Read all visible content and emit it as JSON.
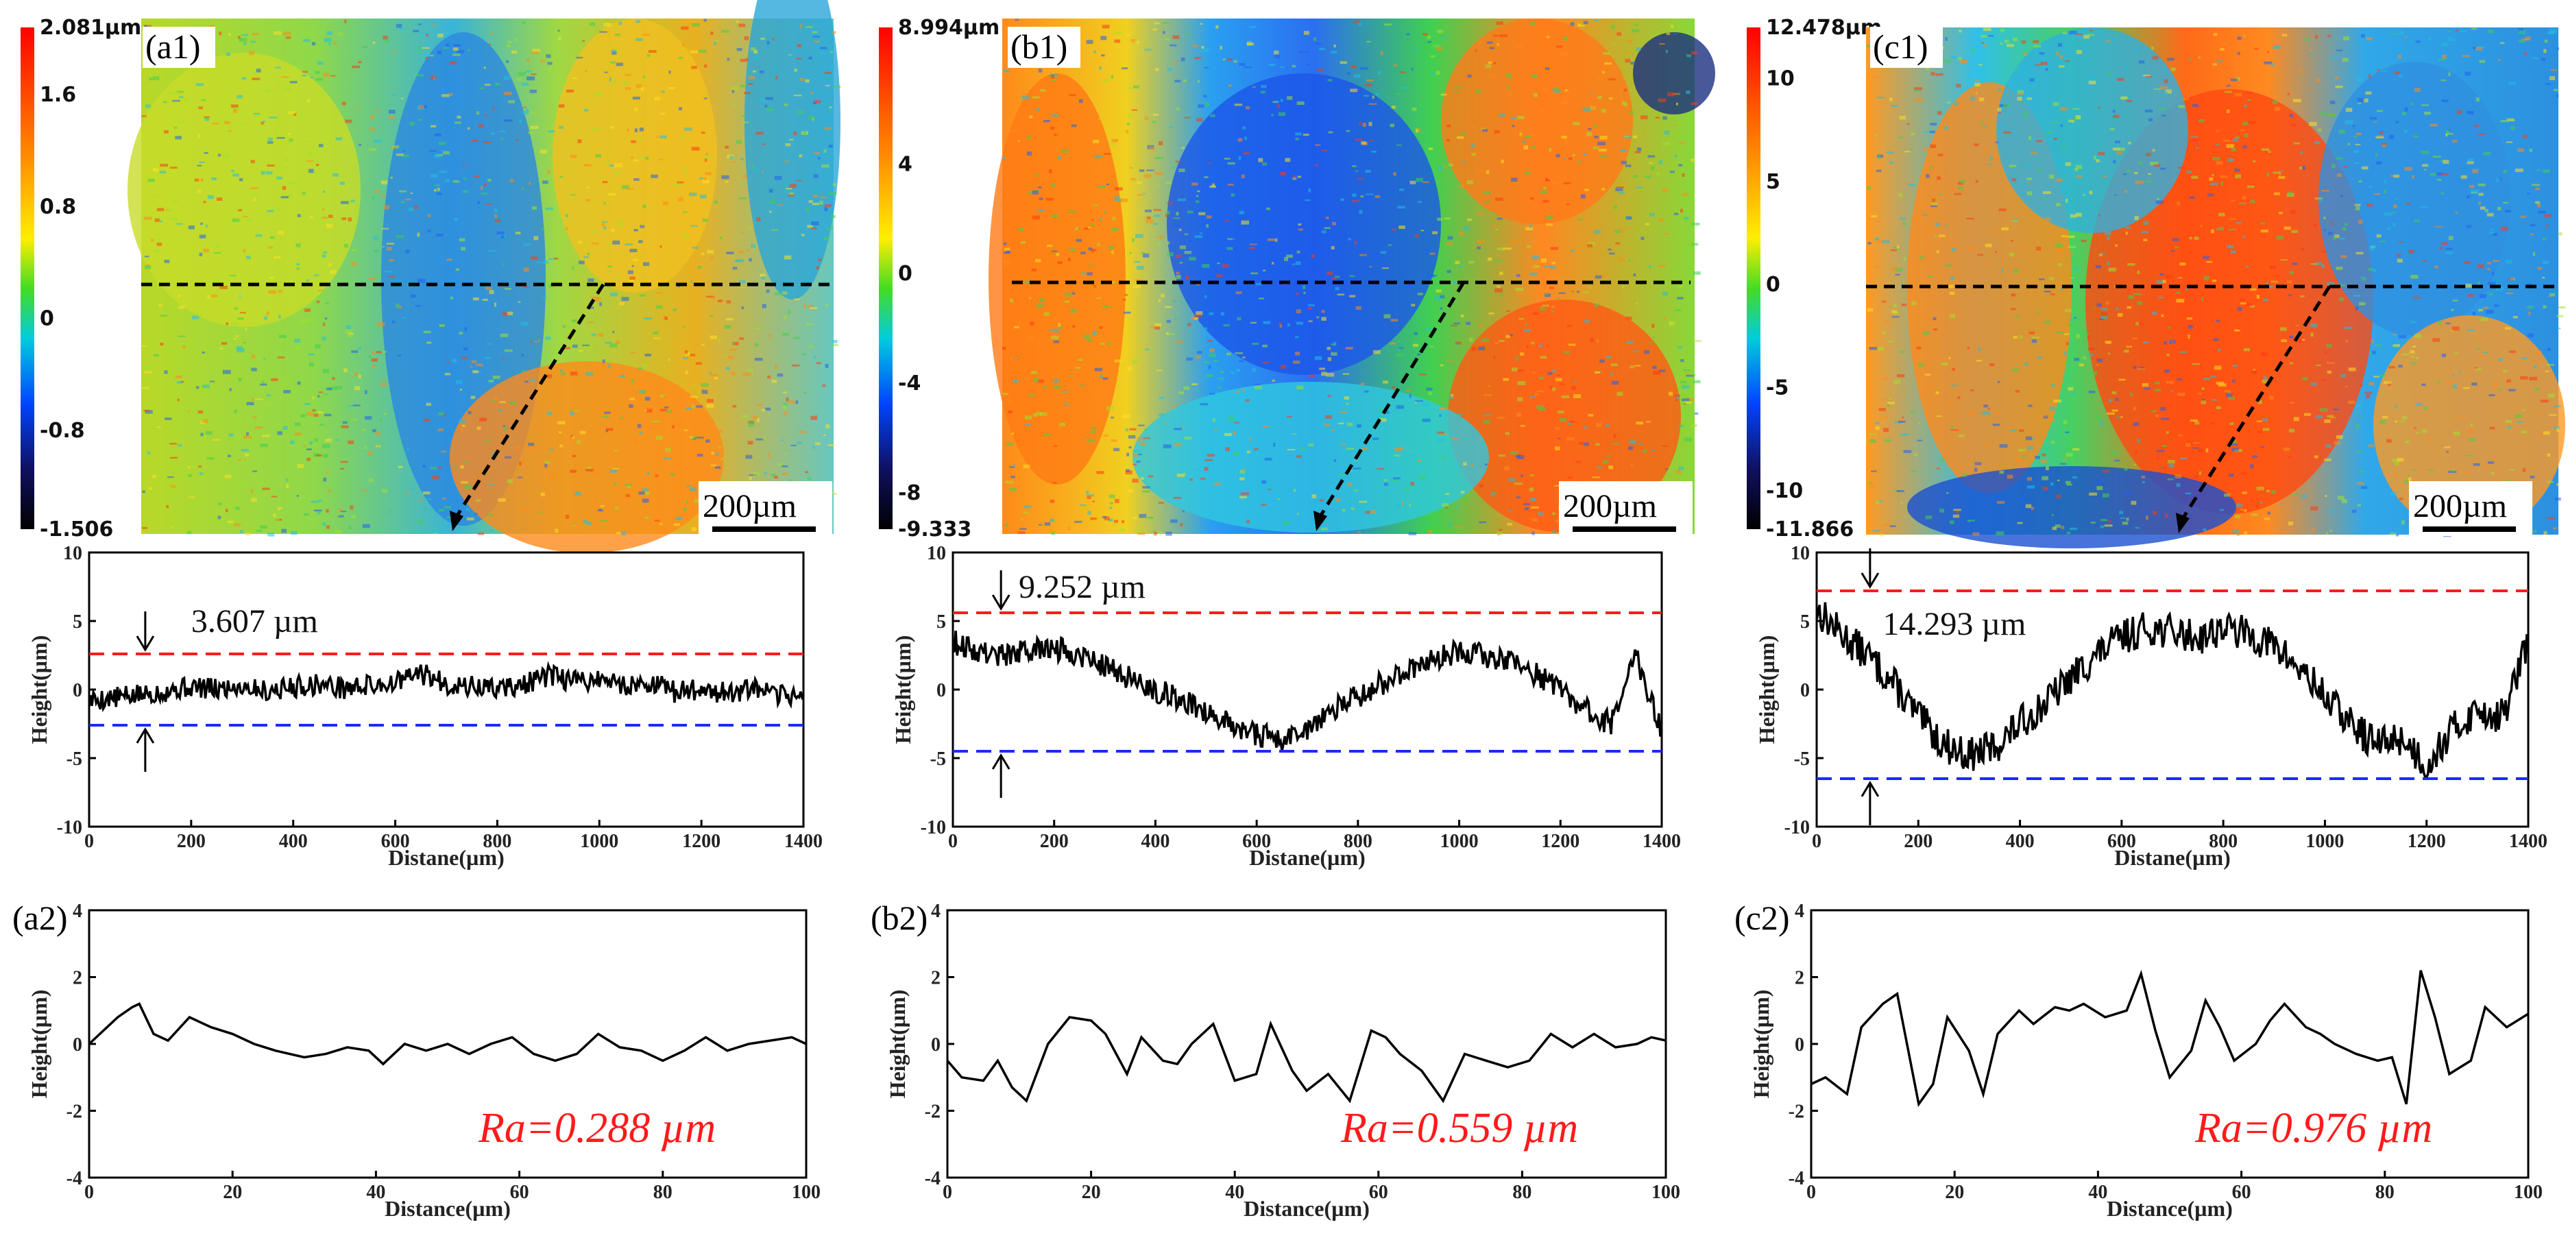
{
  "chart_data": [
    {
      "type": "heatmap",
      "label": "(a1)",
      "unit": "µm",
      "colorbar": [
        "2.081µm",
        "1.6",
        "0.8",
        "0",
        "-0.8",
        "-1.506"
      ],
      "colorbar_values": [
        2.081,
        1.6,
        0.8,
        0,
        -0.8,
        -1.506
      ],
      "scale_bar": "200µm"
    },
    {
      "type": "heatmap",
      "label": "(b1)",
      "unit": "µm",
      "colorbar": [
        "8.994µm",
        "4",
        "0",
        "-4",
        "-8",
        "-9.333"
      ],
      "colorbar_values": [
        8.994,
        4,
        0,
        -4,
        -8,
        -9.333
      ],
      "scale_bar": "200µm"
    },
    {
      "type": "heatmap",
      "label": "(c1)",
      "unit": "µm",
      "colorbar": [
        "12.478µm",
        "10",
        "5",
        "0",
        "-5",
        "-10",
        "-11.866"
      ],
      "colorbar_values": [
        12.478,
        10,
        5,
        0,
        -5,
        -10,
        -11.866
      ],
      "scale_bar": "200µm"
    },
    {
      "type": "line",
      "xlabel": "Distane(µm)",
      "ylabel": "Height(µm)",
      "xlim": [
        0,
        1400
      ],
      "ylim": [
        -10,
        10
      ],
      "xticks": [
        0,
        200,
        400,
        600,
        800,
        1000,
        1200,
        1400
      ],
      "yticks": [
        -10,
        -5,
        0,
        5,
        10
      ],
      "annotation": "3.607 µm",
      "upper_ref": 2.6,
      "lower_ref": -2.6,
      "x": [
        0,
        50,
        100,
        150,
        200,
        250,
        300,
        350,
        400,
        450,
        500,
        550,
        600,
        650,
        700,
        750,
        800,
        850,
        900,
        950,
        1000,
        1050,
        1100,
        1150,
        1200,
        1250,
        1300,
        1350,
        1400
      ],
      "y": [
        -0.8,
        -0.6,
        -0.4,
        -0.1,
        0.2,
        0.0,
        0.3,
        -0.1,
        0.2,
        0.4,
        0.1,
        0.3,
        0.5,
        1.2,
        0.4,
        0.2,
        0.1,
        0.3,
        1.0,
        0.6,
        0.8,
        0.3,
        0.5,
        -0.2,
        0.1,
        -0.3,
        0.0,
        -0.5,
        -0.3
      ]
    },
    {
      "type": "line",
      "xlabel": "Distane(µm)",
      "ylabel": "Height(µm)",
      "xlim": [
        0,
        1400
      ],
      "ylim": [
        -10,
        10
      ],
      "xticks": [
        0,
        200,
        400,
        600,
        800,
        1000,
        1200,
        1400
      ],
      "yticks": [
        -10,
        -5,
        0,
        5,
        10
      ],
      "annotation": "9.252 µm",
      "upper_ref": 5.6,
      "lower_ref": -4.5,
      "x": [
        0,
        50,
        100,
        150,
        200,
        250,
        300,
        350,
        400,
        450,
        500,
        550,
        600,
        650,
        700,
        750,
        800,
        850,
        900,
        950,
        1000,
        1050,
        1100,
        1150,
        1200,
        1250,
        1300,
        1350,
        1400
      ],
      "y": [
        3.5,
        2.8,
        2.5,
        2.8,
        3.0,
        2.6,
        1.8,
        0.8,
        0.0,
        -0.8,
        -1.5,
        -2.5,
        -3.2,
        -3.8,
        -2.8,
        -1.5,
        -0.5,
        0.5,
        1.5,
        2.2,
        2.8,
        2.5,
        2.0,
        1.2,
        0.0,
        -1.5,
        -2.5,
        2.5,
        -3.0
      ]
    },
    {
      "type": "line",
      "xlabel": "Distane(µm)",
      "ylabel": "Height(µm)",
      "xlim": [
        0,
        1400
      ],
      "ylim": [
        -10,
        10
      ],
      "xticks": [
        0,
        200,
        400,
        600,
        800,
        1000,
        1200,
        1400
      ],
      "yticks": [
        -10,
        -5,
        0,
        5,
        10
      ],
      "annotation": "14.293 µm",
      "upper_ref": 7.2,
      "lower_ref": -6.5,
      "x": [
        0,
        50,
        100,
        150,
        200,
        250,
        300,
        350,
        400,
        450,
        500,
        550,
        600,
        650,
        700,
        750,
        800,
        850,
        900,
        950,
        1000,
        1050,
        1100,
        1150,
        1200,
        1250,
        1300,
        1350,
        1400
      ],
      "y": [
        5.8,
        4.0,
        2.5,
        0.5,
        -2.0,
        -4.0,
        -4.8,
        -4.2,
        -2.5,
        -1.0,
        0.8,
        2.5,
        3.8,
        4.5,
        4.2,
        3.8,
        4.5,
        4.0,
        3.2,
        1.5,
        -0.5,
        -2.5,
        -4.0,
        -3.5,
        -5.5,
        -3.0,
        -1.5,
        -2.0,
        3.5
      ]
    },
    {
      "type": "line",
      "label": "(a2)",
      "xlabel": "Distance(µm)",
      "ylabel": "Height(µm)",
      "xlim": [
        0,
        100
      ],
      "ylim": [
        -4,
        4
      ],
      "xticks": [
        0,
        20,
        40,
        60,
        80,
        100
      ],
      "yticks": [
        -4,
        -2,
        0,
        2,
        4
      ],
      "annotation": "Ra=0.288 µm",
      "x": [
        0,
        2,
        4,
        6,
        7,
        9,
        11,
        14,
        17,
        20,
        23,
        26,
        30,
        33,
        36,
        39,
        41,
        44,
        47,
        50,
        53,
        56,
        59,
        62,
        65,
        68,
        71,
        74,
        77,
        80,
        83,
        86,
        89,
        92,
        95,
        98,
        100
      ],
      "y": [
        0.0,
        0.4,
        0.8,
        1.1,
        1.2,
        0.3,
        0.1,
        0.8,
        0.5,
        0.3,
        0.0,
        -0.2,
        -0.4,
        -0.3,
        -0.1,
        -0.2,
        -0.6,
        0.0,
        -0.2,
        0.0,
        -0.3,
        0.0,
        0.2,
        -0.3,
        -0.5,
        -0.3,
        0.3,
        -0.1,
        -0.2,
        -0.5,
        -0.2,
        0.2,
        -0.2,
        0.0,
        0.1,
        0.2,
        0.0
      ]
    },
    {
      "type": "line",
      "label": "(b2)",
      "xlabel": "Distance(µm)",
      "ylabel": "Height(µm)",
      "xlim": [
        0,
        100
      ],
      "ylim": [
        -4,
        4
      ],
      "xticks": [
        0,
        20,
        40,
        60,
        80,
        100
      ],
      "yticks": [
        -4,
        -2,
        0,
        2,
        4
      ],
      "annotation": "Ra=0.559 µm",
      "x": [
        0,
        2,
        5,
        7,
        9,
        11,
        14,
        17,
        20,
        22,
        25,
        27,
        30,
        32,
        34,
        37,
        40,
        43,
        45,
        48,
        50,
        53,
        56,
        59,
        61,
        63,
        66,
        69,
        72,
        75,
        78,
        81,
        84,
        87,
        90,
        93,
        96,
        98,
        100
      ],
      "y": [
        -0.5,
        -1.0,
        -1.1,
        -0.5,
        -1.3,
        -1.7,
        0.0,
        0.8,
        0.7,
        0.3,
        -0.9,
        0.2,
        -0.5,
        -0.6,
        0.0,
        0.6,
        -1.1,
        -0.9,
        0.6,
        -0.8,
        -1.4,
        -0.9,
        -1.7,
        0.4,
        0.2,
        -0.3,
        -0.8,
        -1.7,
        -0.3,
        -0.5,
        -0.7,
        -0.5,
        0.3,
        -0.1,
        0.3,
        -0.1,
        0.0,
        0.2,
        0.1
      ]
    },
    {
      "type": "line",
      "label": "(c2)",
      "xlabel": "Distance(µm)",
      "ylabel": "Height(µm)",
      "xlim": [
        0,
        100
      ],
      "ylim": [
        -4,
        4
      ],
      "xticks": [
        0,
        20,
        40,
        60,
        80,
        100
      ],
      "yticks": [
        -4,
        -2,
        0,
        2,
        4
      ],
      "annotation": "Ra=0.976 µm",
      "x": [
        0,
        2,
        5,
        7,
        10,
        12,
        15,
        17,
        19,
        22,
        24,
        26,
        29,
        31,
        34,
        36,
        38,
        41,
        44,
        46,
        48,
        50,
        53,
        55,
        57,
        59,
        62,
        64,
        66,
        69,
        71,
        73,
        76,
        79,
        81,
        83,
        85,
        87,
        89,
        92,
        94,
        97,
        100
      ],
      "y": [
        -1.2,
        -1.0,
        -1.5,
        0.5,
        1.2,
        1.5,
        -1.8,
        -1.2,
        0.8,
        -0.2,
        -1.5,
        0.3,
        1.0,
        0.6,
        1.1,
        1.0,
        1.2,
        0.8,
        1.0,
        2.1,
        0.4,
        -1.0,
        -0.2,
        1.3,
        0.5,
        -0.5,
        0.0,
        0.7,
        1.2,
        0.5,
        0.3,
        0.0,
        -0.3,
        -0.5,
        -0.4,
        -1.8,
        2.2,
        0.8,
        -0.9,
        -0.5,
        1.1,
        0.5,
        0.9
      ]
    }
  ]
}
